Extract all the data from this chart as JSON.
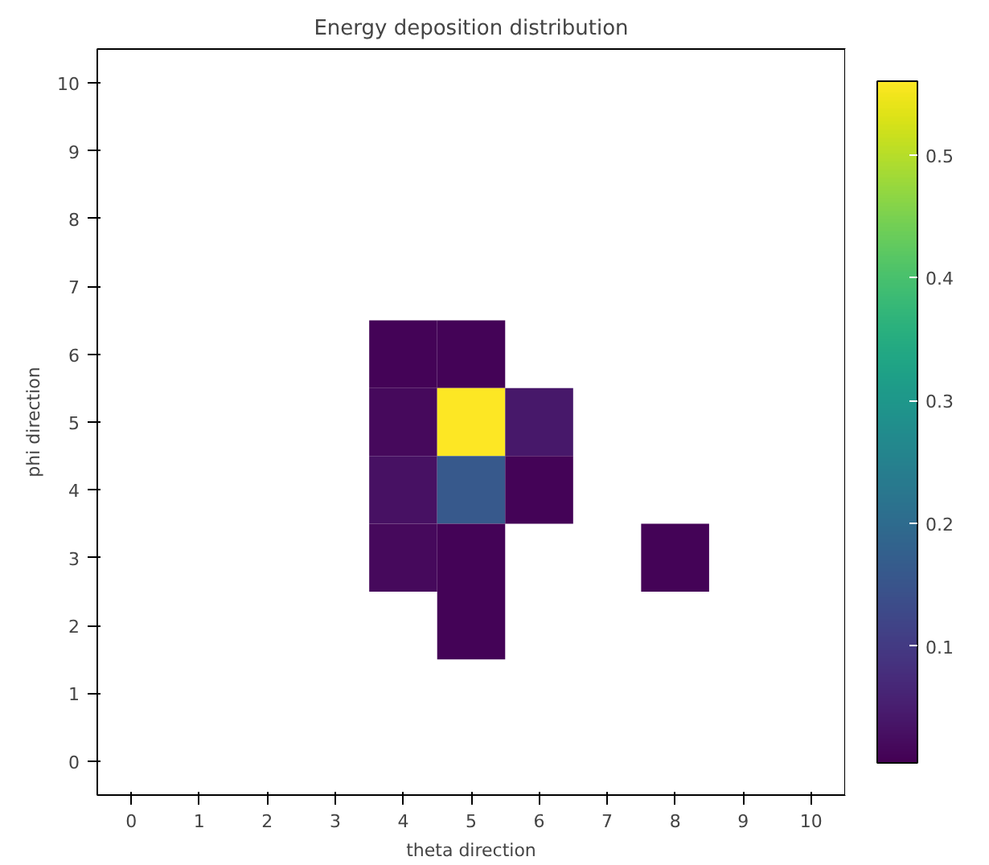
{
  "chart_data": {
    "type": "heatmap",
    "title": "Energy deposition distribution",
    "xlabel": "theta direction",
    "ylabel": "phi direction",
    "categories": [
      "0",
      "1",
      "2",
      "3",
      "4",
      "5",
      "6",
      "7",
      "8",
      "9",
      "10"
    ],
    "y_categories": [
      "10",
      "9",
      "8",
      "7",
      "6",
      "5",
      "4",
      "3",
      "2",
      "1",
      "0"
    ],
    "cells": [
      [
        null,
        null,
        null,
        null,
        null,
        null,
        null,
        null,
        null,
        null,
        null
      ],
      [
        null,
        null,
        null,
        null,
        null,
        null,
        null,
        null,
        null,
        null,
        null
      ],
      [
        null,
        null,
        null,
        null,
        null,
        null,
        null,
        null,
        null,
        null,
        null
      ],
      [
        null,
        null,
        null,
        null,
        null,
        null,
        null,
        null,
        null,
        null,
        null
      ],
      [
        null,
        null,
        null,
        null,
        0.01,
        0.01,
        null,
        null,
        null,
        null,
        null
      ],
      [
        null,
        null,
        null,
        null,
        0.02,
        0.56,
        0.04,
        null,
        null,
        null,
        null
      ],
      [
        null,
        null,
        null,
        null,
        0.03,
        0.16,
        0.01,
        null,
        null,
        null,
        null
      ],
      [
        null,
        null,
        null,
        null,
        0.02,
        0.01,
        null,
        null,
        0.01,
        null,
        null
      ],
      [
        null,
        null,
        null,
        null,
        null,
        0.01,
        null,
        null,
        null,
        null,
        null
      ],
      [
        null,
        null,
        null,
        null,
        null,
        null,
        null,
        null,
        null,
        null,
        null
      ],
      [
        null,
        null,
        null,
        null,
        null,
        null,
        null,
        null,
        null,
        null,
        null
      ]
    ],
    "clim": [
      0.005,
      0.56
    ],
    "cticks": [
      0.1,
      0.2,
      0.3,
      0.4,
      0.5
    ]
  }
}
